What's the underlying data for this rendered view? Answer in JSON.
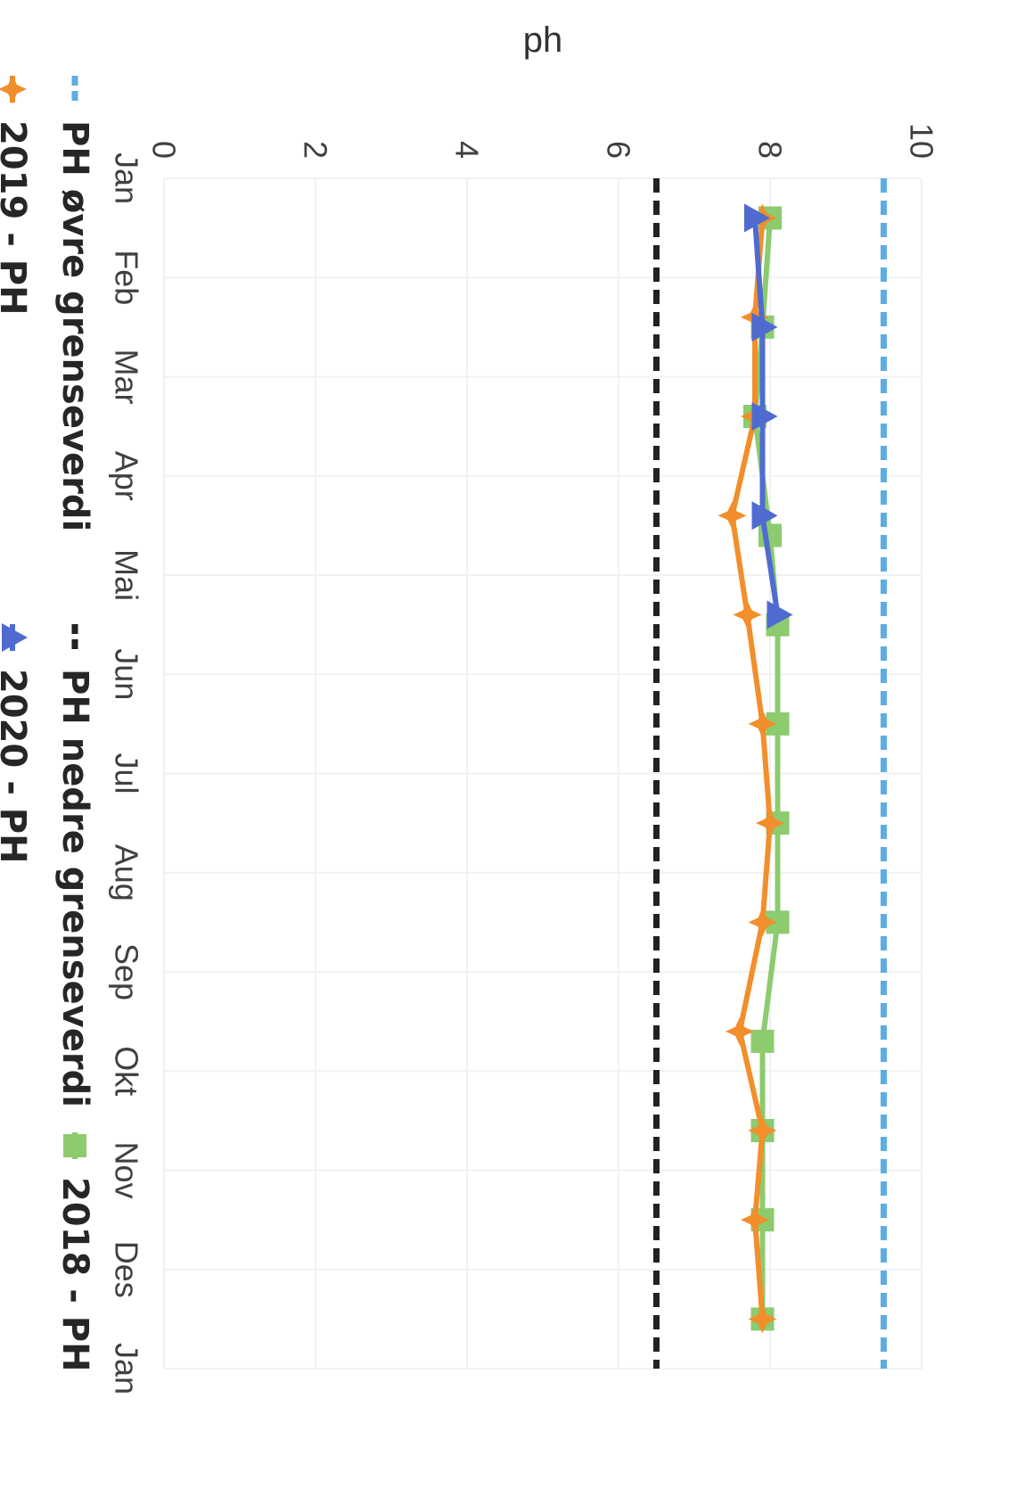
{
  "chart_data": {
    "type": "line",
    "title": "",
    "xlabel": "",
    "ylabel": "ph",
    "ylim": [
      0,
      10
    ],
    "yticks": [
      0,
      2,
      4,
      6,
      8,
      10
    ],
    "grid": true,
    "legend_position": "bottom",
    "categories": [
      "Jan",
      "Feb",
      "Mar",
      "Apr",
      "Mai",
      "Jun",
      "Jul",
      "Aug",
      "Sep",
      "Okt",
      "Nov",
      "Des",
      "Jan"
    ],
    "series": [
      {
        "name": "PH øvre grenseverdi",
        "style": "dashed",
        "marker": "none",
        "color": "#5DADE2",
        "x": [
          0,
          12
        ],
        "values": [
          9.5,
          9.5
        ]
      },
      {
        "name": "PH nedre grenseverdi",
        "style": "dashed",
        "marker": "none",
        "color": "#222222",
        "x": [
          0,
          12
        ],
        "values": [
          6.5,
          6.5
        ]
      },
      {
        "name": "2018 - PH",
        "style": "solid",
        "marker": "square",
        "color": "#8CCB6E",
        "x": [
          0.4,
          1.5,
          2.4,
          3.6,
          4.5,
          5.5,
          6.5,
          7.5,
          8.7,
          9.6,
          10.5,
          11.5
        ],
        "values": [
          8.0,
          7.9,
          7.8,
          8.0,
          8.1,
          8.1,
          8.1,
          8.1,
          7.9,
          7.9,
          7.9,
          7.9
        ]
      },
      {
        "name": "2019 - PH",
        "style": "solid",
        "marker": "star",
        "color": "#F28E2B",
        "x": [
          0.4,
          1.4,
          2.4,
          3.4,
          4.4,
          5.5,
          6.5,
          7.5,
          8.6,
          9.6,
          10.5,
          11.5
        ],
        "values": [
          7.9,
          7.8,
          7.8,
          7.5,
          7.7,
          7.9,
          8.0,
          7.9,
          7.6,
          7.9,
          7.8,
          7.9
        ]
      },
      {
        "name": "2020 - PH",
        "style": "solid",
        "marker": "triangle",
        "color": "#4F6BD0",
        "x": [
          0.4,
          1.5,
          2.4,
          3.4,
          4.4
        ],
        "values": [
          7.8,
          7.9,
          7.9,
          7.9,
          8.1
        ]
      }
    ]
  }
}
